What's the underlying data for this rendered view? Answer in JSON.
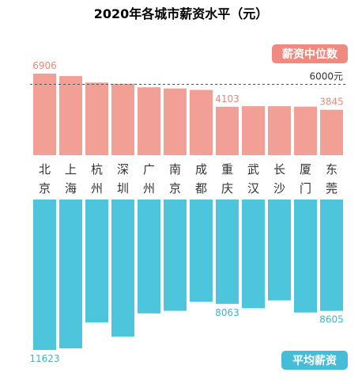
{
  "chart_data": {
    "type": "bar",
    "title": "2020年各城市薪资水平（元）",
    "unit": "元",
    "categories": [
      [
        "北",
        "京"
      ],
      [
        "上",
        "海"
      ],
      [
        "杭",
        "州"
      ],
      [
        "深",
        "圳"
      ],
      [
        "广",
        "州"
      ],
      [
        "南",
        "京"
      ],
      [
        "成",
        "都"
      ],
      [
        "重",
        "庆"
      ],
      [
        "武",
        "汉"
      ],
      [
        "长",
        "沙"
      ],
      [
        "厦",
        "门"
      ],
      [
        "东",
        "莞"
      ]
    ],
    "series": [
      {
        "name": "薪资中位数",
        "values": [
          6906,
          6700,
          6150,
          6050,
          5750,
          5650,
          5530,
          4103,
          4150,
          4150,
          4110,
          3845
        ],
        "data_labels": {
          "0": "6906",
          "7": "4103",
          "11": "3845"
        }
      },
      {
        "name": "平均薪资",
        "values": [
          11623,
          11500,
          9500,
          10600,
          8800,
          8600,
          7900,
          8063,
          8400,
          7800,
          8730,
          8605
        ],
        "data_labels": {
          "0": "11623",
          "7": "8063",
          "11": "8605"
        }
      }
    ],
    "reference_line": {
      "value": 6000,
      "label": "6000元"
    },
    "colors": {
      "median": "#f2a096",
      "average": "#4dc5dc",
      "median_badge": "#f08a80",
      "average_badge": "#45bdd6",
      "median_label": "#e8877c",
      "average_label": "#3fb4cc",
      "title": "#444444",
      "category_text": "#333333",
      "reference_line": "#555555"
    }
  }
}
